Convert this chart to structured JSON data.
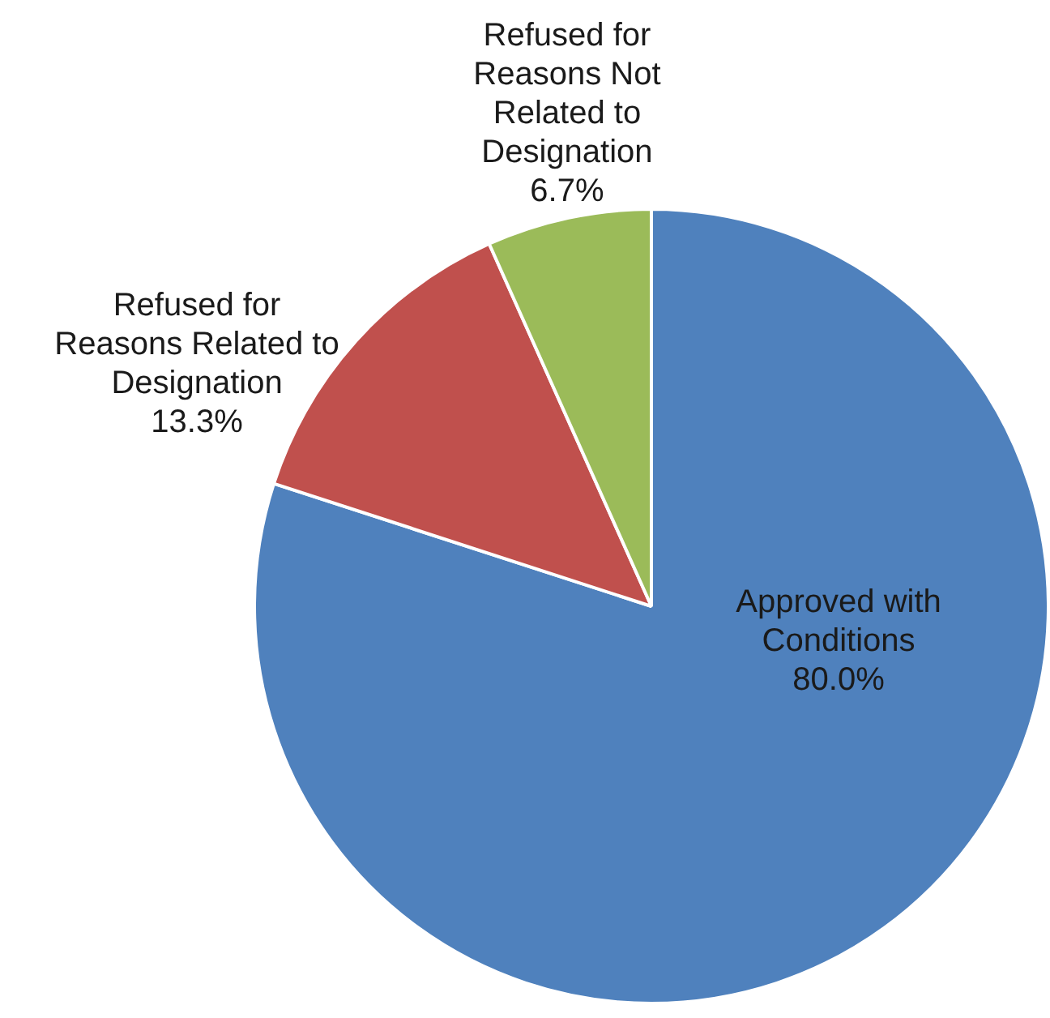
{
  "chart_data": {
    "type": "pie",
    "categories": [
      "Approved with Conditions",
      "Refused for Reasons Related to Designation",
      "Refused for Reasons Not Related to Designation"
    ],
    "values": [
      80.0,
      13.3,
      6.7
    ],
    "value_labels": [
      "80.0%",
      "13.3%",
      "6.7%"
    ],
    "colors": [
      "#4f81bd",
      "#c0504d",
      "#9bbb59"
    ]
  }
}
